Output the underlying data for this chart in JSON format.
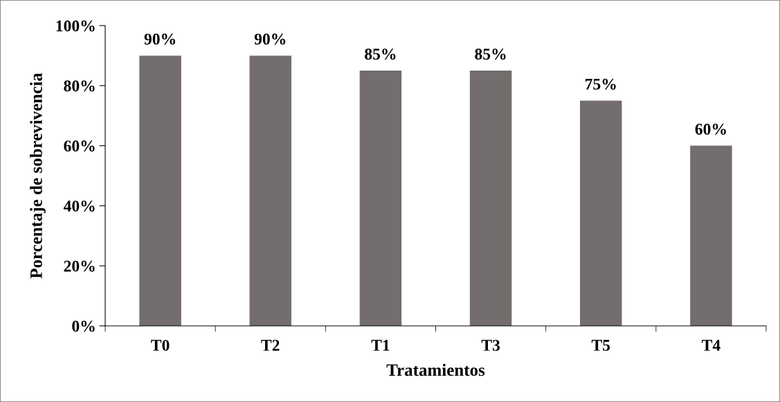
{
  "chart_data": {
    "type": "bar",
    "xlabel": "Tratamientos",
    "ylabel": "Porcentaje de sobrevivencia",
    "categories": [
      "T0",
      "T2",
      "T1",
      "T3",
      "T5",
      "T4"
    ],
    "values": [
      90,
      90,
      85,
      85,
      75,
      60
    ],
    "value_labels": [
      "90%",
      "90%",
      "85%",
      "85%",
      "75%",
      "60%"
    ],
    "color": "#736e6d",
    "ylim": [
      0,
      100
    ],
    "yticks": [
      {
        "value": 0,
        "label": "0%"
      },
      {
        "value": 20,
        "label": "20%"
      },
      {
        "value": 40,
        "label": "40%"
      },
      {
        "value": 60,
        "label": "60%"
      },
      {
        "value": 80,
        "label": "80%"
      },
      {
        "value": 100,
        "label": "100%"
      }
    ],
    "grid": false
  }
}
